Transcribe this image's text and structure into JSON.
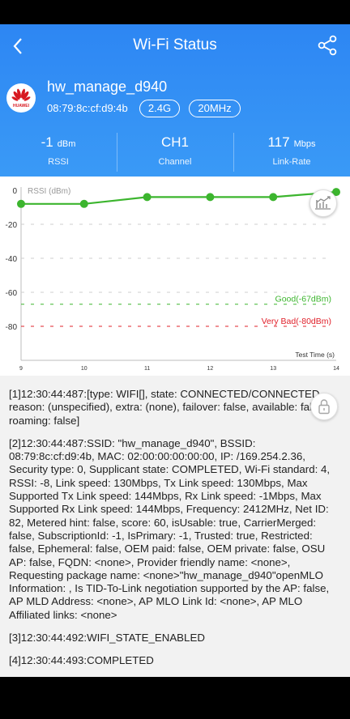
{
  "header": {
    "title": "Wi-Fi Status",
    "ssid": "hw_manage_d940",
    "bssid": "08:79:8c:cf:d9:4b",
    "band": "2.4G",
    "bandwidth": "20MHz",
    "logo_text": "HUAWEI",
    "back_icon": "back-arrow-icon",
    "share_icon": "share-icon"
  },
  "stats": [
    {
      "value": "-1",
      "unit": "dBm",
      "label": "RSSI"
    },
    {
      "value": "CH1",
      "unit": "",
      "label": "Channel"
    },
    {
      "value": "117",
      "unit": "Mbps",
      "label": "Link-Rate"
    }
  ],
  "chart_data": {
    "type": "line",
    "title": "RSSI (dBm)",
    "xlabel": "Test Time (s)",
    "ylabel": "",
    "x": [
      9,
      10,
      11,
      12,
      13,
      14
    ],
    "xlim": [
      9,
      14
    ],
    "ylim": [
      -100,
      0
    ],
    "yticks": [
      0,
      -20,
      -40,
      -60,
      -80
    ],
    "series": [
      {
        "x": [
          9,
          10,
          11,
          12,
          13,
          14
        ],
        "values": [
          -8,
          -8,
          -4,
          -4,
          -4,
          -1
        ],
        "color": "#3cb52e"
      }
    ],
    "thresholds": [
      {
        "label": "Good(-67dBm)",
        "value": -67,
        "color": "#3cb52e"
      },
      {
        "label": "Very Bad(-80dBm)",
        "value": -80,
        "color": "#e0202a"
      }
    ],
    "grid_lines": [
      -20,
      -40,
      -60,
      -67,
      -80
    ],
    "grid": true
  },
  "log": {
    "entries": [
      "[1]12:30:44:487:[type: WIFI[], state: CONNECTED/CONNECTED, reason: (unspecified), extra: (none), failover: false, available: false, roaming: false]",
      "[2]12:30:44:487:SSID: \"hw_manage_d940\", BSSID: 08:79:8c:cf:d9:4b, MAC: 02:00:00:00:00:00, IP: /169.254.2.36, Security type: 0, Supplicant state: COMPLETED, Wi-Fi standard: 4, RSSI: -8, Link speed: 130Mbps, Tx Link speed: 130Mbps, Max Supported Tx Link speed: 144Mbps, Rx Link speed: -1Mbps, Max Supported Rx Link speed: 144Mbps, Frequency: 2412MHz, Net ID: 82, Metered hint: false, score: 60, isUsable: true, CarrierMerged: false, SubscriptionId: -1, IsPrimary: -1, Trusted: true, Restricted: false, Ephemeral: false, OEM paid: false, OEM private: false, OSU AP: false, FQDN: <none>, Provider friendly name: <none>, Requesting package name: <none>\"hw_manage_d940\"openMLO Information: , Is TID-To-Link negotiation supported by the AP: false, AP MLD Address: <none>, AP MLO Link Id: <none>, AP MLO Affiliated links: <none>",
      "[3]12:30:44:492:WIFI_STATE_ENABLED",
      "[4]12:30:44:493:COMPLETED"
    ]
  },
  "colors": {
    "header_blue": "#2d86f3",
    "line_green": "#3cb52e",
    "bad_red": "#e0202a"
  }
}
